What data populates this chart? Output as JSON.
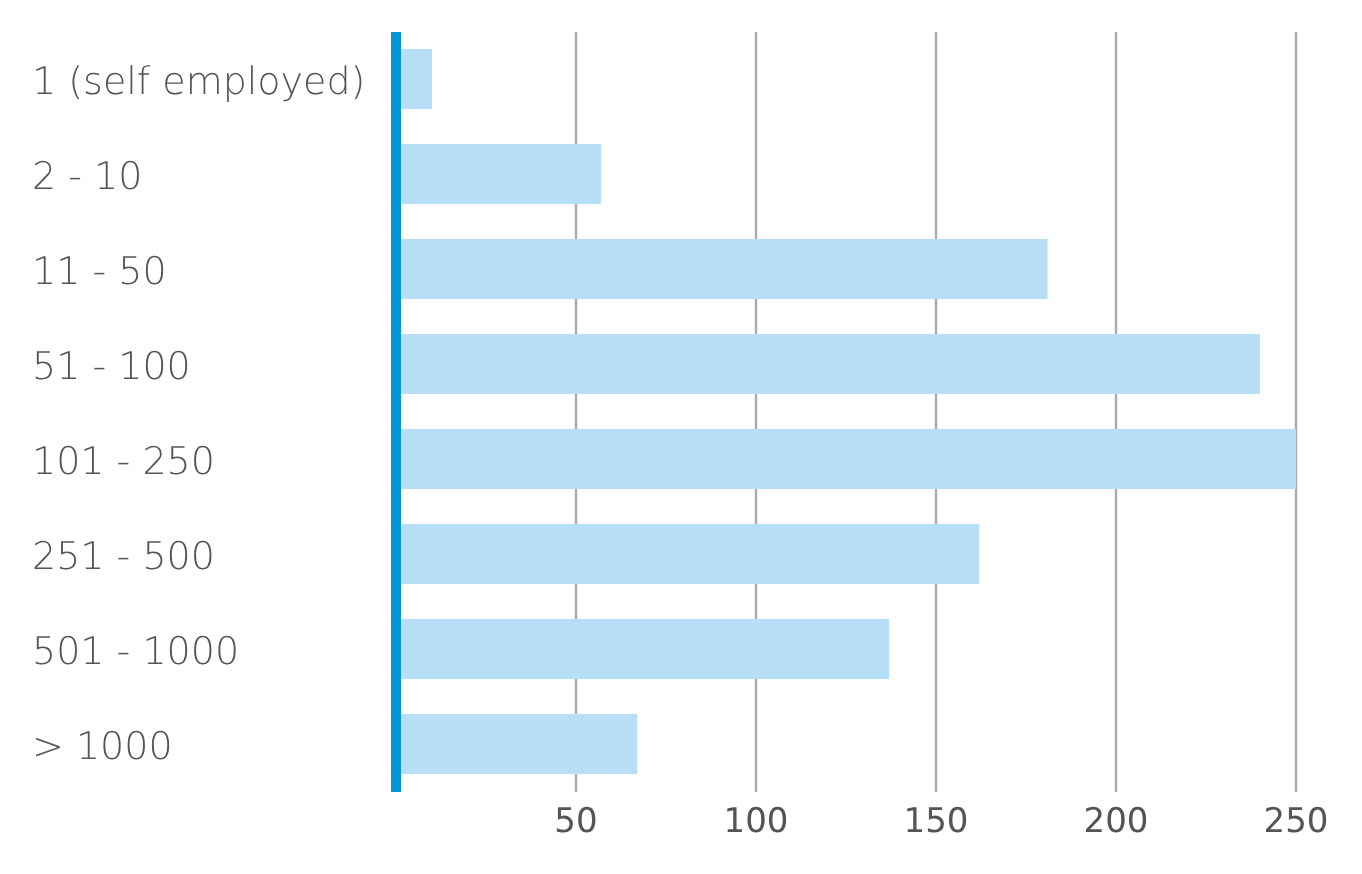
{
  "chart_data": {
    "type": "bar",
    "orientation": "horizontal",
    "categories": [
      "1 (self employed)",
      "2 - 10",
      "11 - 50",
      "51 - 100",
      "101 - 250",
      "251 - 500",
      "501 - 1000",
      "> 1000"
    ],
    "values": [
      10,
      57,
      181,
      240,
      250,
      162,
      137,
      67
    ],
    "color": "#b7dff7",
    "xlim": [
      0,
      250
    ],
    "xticks": [
      50,
      100,
      150,
      200,
      250
    ],
    "grid": "x",
    "legend": false
  }
}
